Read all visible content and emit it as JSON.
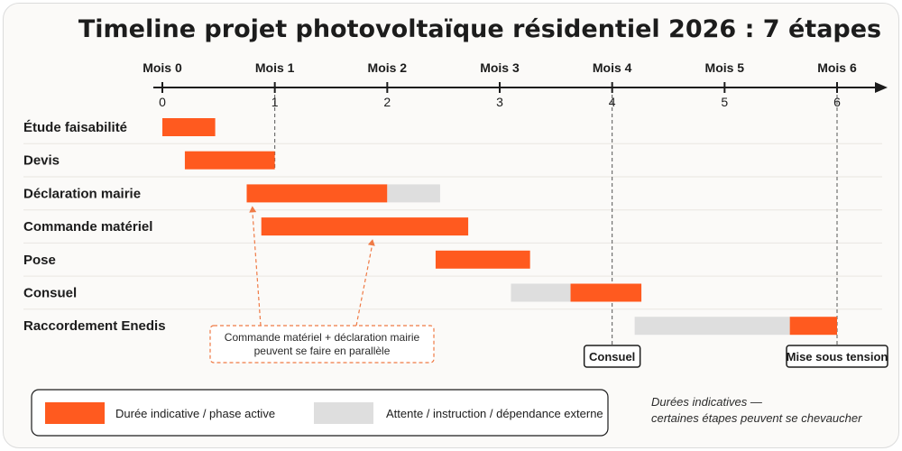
{
  "chart_data": {
    "type": "gantt",
    "title": "Timeline projet photovoltaïque résidentiel 2026 : 7 étapes",
    "x_axis": {
      "range": [
        0,
        6
      ],
      "top_labels": [
        "Mois 0",
        "Mois 1",
        "Mois 2",
        "Mois 3",
        "Mois 4",
        "Mois 5",
        "Mois 6"
      ],
      "tick_labels": [
        "0",
        "1",
        "2",
        "3",
        "4",
        "5",
        "6"
      ],
      "ticks": [
        0,
        1,
        2,
        3,
        4,
        5,
        6
      ]
    },
    "tasks": [
      {
        "name": "Étude faisabilité",
        "segments": [
          {
            "start": 0.0,
            "end": 0.47,
            "kind": "active"
          }
        ]
      },
      {
        "name": "Devis",
        "segments": [
          {
            "start": 0.2,
            "end": 1.0,
            "kind": "active"
          }
        ]
      },
      {
        "name": "Déclaration mairie",
        "segments": [
          {
            "start": 0.75,
            "end": 2.0,
            "kind": "active"
          },
          {
            "start": 2.0,
            "end": 2.47,
            "kind": "waiting"
          }
        ]
      },
      {
        "name": "Commande matériel",
        "segments": [
          {
            "start": 0.88,
            "end": 2.72,
            "kind": "active"
          }
        ]
      },
      {
        "name": "Pose",
        "segments": [
          {
            "start": 2.43,
            "end": 3.27,
            "kind": "active"
          }
        ]
      },
      {
        "name": "Consuel",
        "segments": [
          {
            "start": 3.1,
            "end": 3.63,
            "kind": "waiting"
          },
          {
            "start": 3.63,
            "end": 4.26,
            "kind": "active"
          }
        ]
      },
      {
        "name": "Raccordement Enedis",
        "segments": [
          {
            "start": 4.2,
            "end": 5.58,
            "kind": "waiting"
          },
          {
            "start": 5.58,
            "end": 6.0,
            "kind": "active"
          }
        ]
      }
    ],
    "milestones": [
      {
        "label": "Consuel",
        "at": 4.0
      },
      {
        "label": "Mise sous tension",
        "at": 6.0
      }
    ],
    "annotation": {
      "lines": [
        "Commande matériel + déclaration mairie",
        "peuvent se faire en parallèle"
      ],
      "points_to": [
        {
          "task": "Déclaration mairie",
          "at": 0.8
        },
        {
          "task": "Commande matériel",
          "at": 1.87
        }
      ]
    },
    "legend": {
      "placement": "bottom",
      "items": [
        {
          "label": "Durée indicative / phase active",
          "kind": "active"
        },
        {
          "label": "Attente / instruction / dépendance externe",
          "kind": "waiting"
        }
      ]
    },
    "note_lines": [
      "Durées indicatives —",
      "certaines étapes peuvent se chevaucher"
    ],
    "colors": {
      "active": "#ff5a1f",
      "waiting": "#dedede",
      "axis": "#1c1c1c",
      "annotation": "#ef7a45",
      "gridline": "#e9e6e1"
    }
  }
}
